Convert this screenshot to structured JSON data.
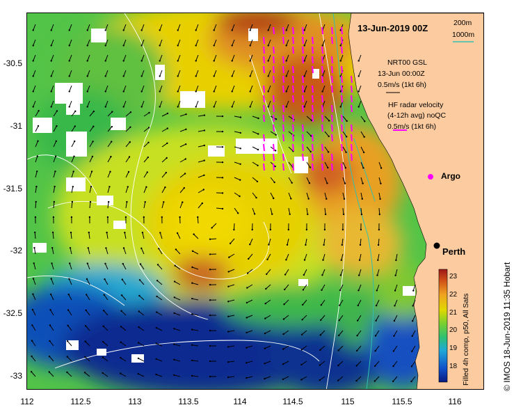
{
  "title": "13-Jun-2019 00Z",
  "depth_legend": [
    "200m",
    "1000m"
  ],
  "nrt": {
    "line1": "NRT00 GSL",
    "line2": "13-Jun 00:00Z",
    "line3": "0.5m/s (1kt 6h)"
  },
  "hf": {
    "line1": "HF radar velocity",
    "line2": "(4-12h avg) noQC",
    "line3": "0.5m/s (1kt 6h)"
  },
  "argo_label": "Argo",
  "city_label": "Perth",
  "y_ticks": [
    "-30.5",
    "-31",
    "-31.5",
    "-32",
    "-32.5",
    "-33"
  ],
  "x_ticks": [
    "112",
    "112.5",
    "113",
    "113.5",
    "114",
    "114.5",
    "115",
    "115.5",
    "116"
  ],
  "colorbar_ticks": [
    "23",
    "22",
    "21",
    "20",
    "19",
    "18"
  ],
  "colorbar_caption": "Filled 4h comp, p50, All Sats",
  "credit": "© IMOS 18-Jun-2019 11:35 Hobart",
  "colors": {
    "land": "#fccca0",
    "vector_black": "#000000",
    "vector_magenta": "#ff00ff",
    "contour_200m": "#30c0b0",
    "contour_1000m": "#ffffff"
  }
}
